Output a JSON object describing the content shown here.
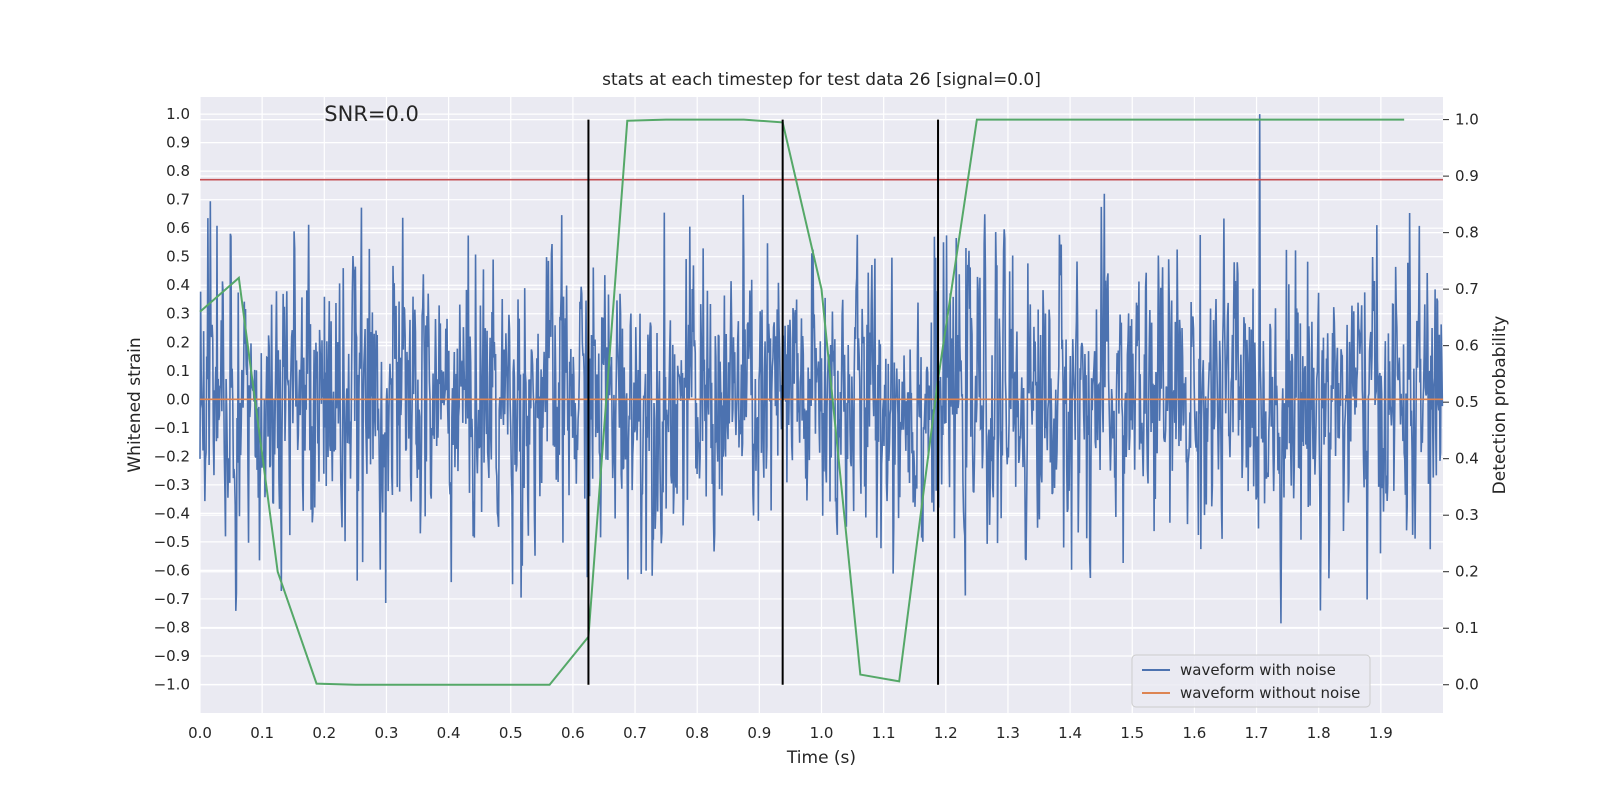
{
  "chart_data": {
    "type": "line",
    "title": "stats at each timestep for test data 26 [signal=0.0]",
    "xlabel": "Time (s)",
    "ylabel": "Whitened strain",
    "y2label": "Detection probability",
    "annotation": "SNR=0.0",
    "xlim": [
      0.0,
      2.0
    ],
    "ylim": [
      -1.1,
      1.06
    ],
    "y2lim": [
      -0.05,
      1.04
    ],
    "x_ticks": [
      "0.0",
      "0.1",
      "0.2",
      "0.3",
      "0.4",
      "0.5",
      "0.6",
      "0.7",
      "0.8",
      "0.9",
      "1.0",
      "1.1",
      "1.2",
      "1.3",
      "1.4",
      "1.5",
      "1.6",
      "1.7",
      "1.8",
      "1.9"
    ],
    "y_ticks": [
      "1.0",
      "0.9",
      "0.8",
      "0.7",
      "0.6",
      "0.5",
      "0.4",
      "0.3",
      "0.2",
      "0.1",
      "0.0",
      "−0.1",
      "−0.2",
      "−0.3",
      "−0.4",
      "−0.5",
      "−0.6",
      "−0.7",
      "−0.8",
      "−0.9",
      "−1.0"
    ],
    "y2_ticks": [
      "1.0",
      "0.9",
      "0.8",
      "0.7",
      "0.6",
      "0.5",
      "0.4",
      "0.3",
      "0.2",
      "0.1",
      "0.0"
    ],
    "grid": true,
    "legend_position": "lower right",
    "colors": {
      "noisy": "#4c72b0",
      "clean": "#dd8452",
      "probability": "#55a868",
      "threshold": "#c44e52",
      "vlines": "#000000",
      "background": "#eaeaf2",
      "grid": "#ffffff"
    },
    "series": [
      {
        "name": "waveform with noise",
        "axis": "left",
        "description_type": "noise",
        "n_samples": 2048,
        "amplitude_range": [
          -1.0,
          1.0
        ],
        "seed": 26
      },
      {
        "name": "waveform without noise",
        "axis": "left",
        "x": [
          0.0,
          2.0
        ],
        "y": [
          0.0,
          0.0
        ]
      },
      {
        "axis": "right",
        "x": [
          0.0,
          0.0625,
          0.125,
          0.1875,
          0.25,
          0.3125,
          0.375,
          0.4375,
          0.5,
          0.5625,
          0.625,
          0.6875,
          0.75,
          0.8125,
          0.875,
          0.9375,
          1.0,
          1.0625,
          1.125,
          1.1875,
          1.25,
          1.3125,
          1.375,
          1.4375,
          1.5,
          1.5625,
          1.625,
          1.6875,
          1.75,
          1.8125,
          1.875,
          1.9375
        ],
        "y": [
          0.66,
          0.72,
          0.2,
          0.002,
          0.0,
          0.0,
          0.0,
          0.0,
          0.0,
          0.0,
          0.085,
          0.998,
          1.0,
          1.0,
          1.0,
          0.995,
          0.7,
          0.018,
          0.006,
          0.54,
          1.0,
          1.0,
          1.0,
          1.0,
          1.0,
          1.0,
          1.0,
          1.0,
          1.0,
          1.0,
          1.0,
          1.0
        ]
      },
      {
        "axis": "left",
        "type": "hline",
        "y": 0.77
      }
    ],
    "vlines_x": [
      0.625,
      0.9375,
      1.1875
    ]
  }
}
